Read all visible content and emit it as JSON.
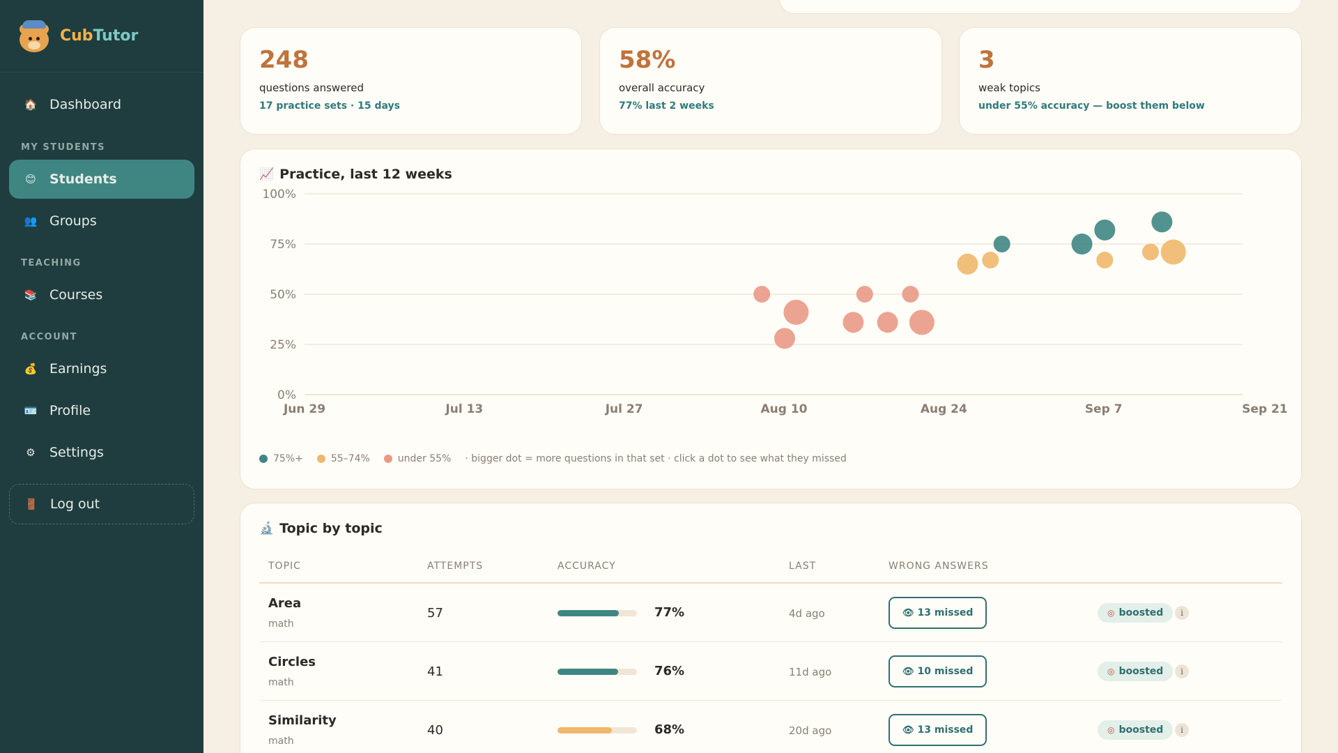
{
  "brand": {
    "name_a": "Cub",
    "name_b": "Tutor",
    "logo_icon": "bear-icon"
  },
  "sidebar": {
    "items": [
      {
        "label": "Dashboard",
        "icon": "house-icon",
        "glyph": "🏠"
      },
      {
        "label": "Students",
        "icon": "student-icon",
        "glyph": "😊",
        "active": true
      },
      {
        "label": "Groups",
        "icon": "people-icon",
        "glyph": "👥"
      },
      {
        "label": "Courses",
        "icon": "books-icon",
        "glyph": "📚"
      },
      {
        "label": "Earnings",
        "icon": "money-bag-icon",
        "glyph": "💰"
      },
      {
        "label": "Profile",
        "icon": "id-card-icon",
        "glyph": "🪪"
      },
      {
        "label": "Settings",
        "icon": "gear-icon",
        "glyph": "⚙"
      },
      {
        "label": "Log out",
        "icon": "door-icon",
        "glyph": "🚪"
      }
    ],
    "sections": {
      "my_students": "MY STUDENTS",
      "teaching": "TEACHING",
      "account": "ACCOUNT"
    }
  },
  "stats": [
    {
      "value": "248",
      "label": "questions answered",
      "sub": "17 practice sets · 15 days"
    },
    {
      "value": "58%",
      "label": "overall accuracy",
      "sub": "77% last 2 weeks"
    },
    {
      "value": "3",
      "label": "weak topics",
      "sub": "under 55% accuracy — boost them below"
    }
  ],
  "practice": {
    "title": "Practice, last 12 weeks",
    "icon": "chart-icon",
    "legend": {
      "high": "75%+",
      "mid": "55–74%",
      "low": "under 55%",
      "note": "· bigger dot = more questions in that set · click a dot to see what they missed"
    }
  },
  "colors": {
    "high": "#3f8683",
    "mid": "#f0b86a",
    "low": "#e99a85",
    "accent": "#c0733a"
  },
  "chart_data": {
    "type": "scatter",
    "title": "Practice, last 12 weeks",
    "x_ticks": [
      "Jun 29",
      "Jul 13",
      "Jul 27",
      "Aug 10",
      "Aug 24",
      "Sep 7",
      "Sep 21"
    ],
    "y_ticks": [
      "0%",
      "25%",
      "50%",
      "75%",
      "100%"
    ],
    "xlim": [
      "2024-06-29",
      "2024-09-21"
    ],
    "ylim": [
      0,
      100
    ],
    "grid": true,
    "legend_position": "bottom-left",
    "size_encoding": "bigger dot = more questions in that set",
    "points": [
      {
        "date": "2024-08-08",
        "accuracy": 50,
        "size": 2,
        "band": "low"
      },
      {
        "date": "2024-08-10",
        "accuracy": 28,
        "size": 3,
        "band": "low"
      },
      {
        "date": "2024-08-11",
        "accuracy": 41,
        "size": 4,
        "band": "low"
      },
      {
        "date": "2024-08-16",
        "accuracy": 36,
        "size": 3,
        "band": "low"
      },
      {
        "date": "2024-08-17",
        "accuracy": 50,
        "size": 2,
        "band": "low"
      },
      {
        "date": "2024-08-19",
        "accuracy": 36,
        "size": 3,
        "band": "low"
      },
      {
        "date": "2024-08-21",
        "accuracy": 50,
        "size": 2,
        "band": "low"
      },
      {
        "date": "2024-08-22",
        "accuracy": 36,
        "size": 4,
        "band": "low"
      },
      {
        "date": "2024-08-26",
        "accuracy": 65,
        "size": 3,
        "band": "mid"
      },
      {
        "date": "2024-08-28",
        "accuracy": 67,
        "size": 2,
        "band": "mid"
      },
      {
        "date": "2024-08-29",
        "accuracy": 75,
        "size": 2,
        "band": "high"
      },
      {
        "date": "2024-09-05",
        "accuracy": 75,
        "size": 3,
        "band": "high"
      },
      {
        "date": "2024-09-07",
        "accuracy": 82,
        "size": 3,
        "band": "high"
      },
      {
        "date": "2024-09-07",
        "accuracy": 67,
        "size": 2,
        "band": "mid"
      },
      {
        "date": "2024-09-11",
        "accuracy": 71,
        "size": 2,
        "band": "mid"
      },
      {
        "date": "2024-09-12",
        "accuracy": 86,
        "size": 3,
        "band": "high"
      },
      {
        "date": "2024-09-13",
        "accuracy": 71,
        "size": 4,
        "band": "mid"
      }
    ]
  },
  "topics": {
    "title": "Topic by topic",
    "icon": "microscope-icon",
    "columns": [
      "TOPIC",
      "ATTEMPTS",
      "ACCURACY",
      "LAST",
      "WRONG ANSWERS"
    ],
    "rows": [
      {
        "topic": "Area",
        "category": "math",
        "attempts": "57",
        "accuracy": "77%",
        "accuracy_value": 0.77,
        "band": "high",
        "last": "4d ago",
        "missed": "13 missed",
        "boost": "boosted"
      },
      {
        "topic": "Circles",
        "category": "math",
        "attempts": "41",
        "accuracy": "76%",
        "accuracy_value": 0.76,
        "band": "high",
        "last": "11d ago",
        "missed": "10 missed",
        "boost": "boosted"
      },
      {
        "topic": "Similarity",
        "category": "math",
        "attempts": "40",
        "accuracy": "68%",
        "accuracy_value": 0.68,
        "band": "mid",
        "last": "20d ago",
        "missed": "13 missed",
        "boost": "boosted"
      }
    ]
  }
}
